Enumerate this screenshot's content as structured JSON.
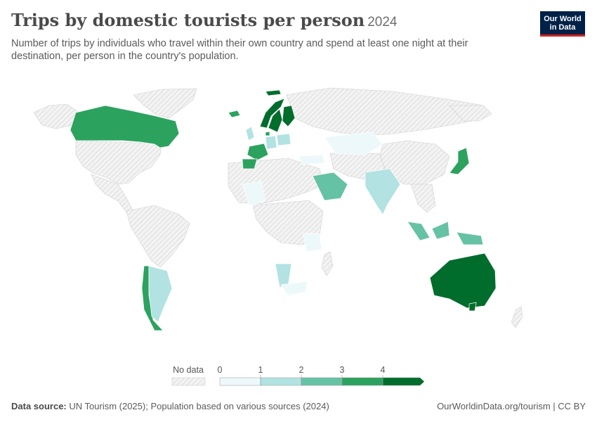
{
  "header": {
    "title": "Trips by domestic tourists per person",
    "year": "2024",
    "subtitle": "Number of trips by individuals who travel within their own country and spend at least one night at their destination, per person in the country's population."
  },
  "logo": {
    "line1": "Our World",
    "line2": "in Data"
  },
  "legend": {
    "no_data_label": "No data",
    "ticks": [
      "0",
      "1",
      "2",
      "3",
      "4"
    ],
    "colors": [
      "#edf8fb",
      "#b2e2e2",
      "#66c2a4",
      "#2ca25f",
      "#006d2c"
    ],
    "no_data_color": "#e6e6e6"
  },
  "footer": {
    "source_label": "Data source:",
    "source_text": "UN Tourism (2025); Population based on various sources (2024)",
    "right_text": "OurWorldinData.org/tourism | CC BY"
  },
  "map_data": {
    "colors": {
      "Canada": "#2ca25f",
      "Norway": "#006d2c",
      "Sweden": "#006d2c",
      "Finland": "#006d2c",
      "France": "#2ca25f",
      "Spain": "#2ca25f",
      "United Kingdom": "#b2e2e2",
      "Germany": "#b2e2e2",
      "Poland": "#b2e2e2",
      "Kazakhstan": "#edf8fb",
      "Turkey": "#edf8fb",
      "Saudi Arabia": "#66c2a4",
      "India": "#b2e2e2",
      "Japan": "#2ca25f",
      "Indonesia": "#66c2a4",
      "Australia": "#006d2c",
      "Chile": "#2ca25f",
      "Argentina": "#b2e2e2",
      "Namibia": "#b2e2e2",
      "South Africa": "#edf8fb",
      "Tanzania": "#edf8fb",
      "Mali": "#edf8fb",
      "Iceland": "#2ca25f",
      "Denmark": "#2ca25f"
    }
  }
}
